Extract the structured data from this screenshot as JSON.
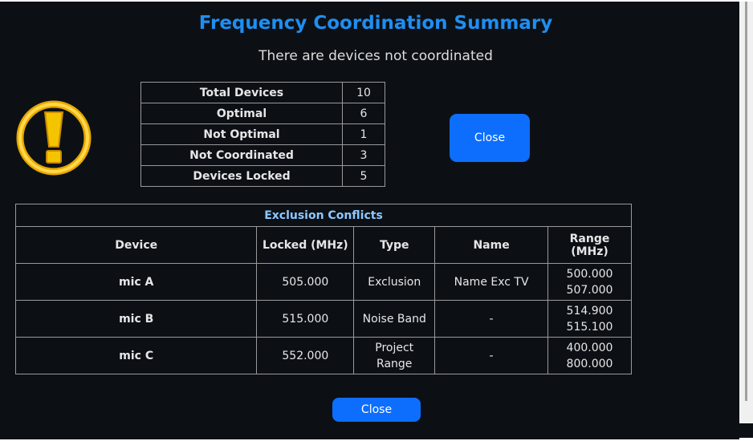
{
  "title": "Frequency Coordination Summary",
  "subtitle": "There are devices not coordinated",
  "icon": "warning-exclamation-icon",
  "summary": [
    {
      "label": "Total Devices",
      "value": "10"
    },
    {
      "label": "Optimal",
      "value": "6"
    },
    {
      "label": "Not Optimal",
      "value": "1"
    },
    {
      "label": "Not Coordinated",
      "value": "3"
    },
    {
      "label": "Devices Locked",
      "value": "5"
    }
  ],
  "close_label": "Close",
  "exclusion": {
    "title": "Exclusion Conflicts",
    "headers": [
      "Device",
      "Locked (MHz)",
      "Type",
      "Name",
      "Range (MHz)"
    ],
    "rows": [
      {
        "device": "mic A",
        "locked": "505.000",
        "type": "Exclusion",
        "name": "Name Exc TV",
        "range_low": "500.000",
        "range_high": "507.000"
      },
      {
        "device": "mic B",
        "locked": "515.000",
        "type": "Noise Band",
        "name": "-",
        "range_low": "514.900",
        "range_high": "515.100"
      },
      {
        "device": "mic C",
        "locked": "552.000",
        "type": "Project Range",
        "name": "-",
        "range_low": "400.000",
        "range_high": "800.000"
      }
    ]
  },
  "colors": {
    "accent": "#0d6efd",
    "title": "#1f8ef1",
    "background": "#0c1015"
  }
}
